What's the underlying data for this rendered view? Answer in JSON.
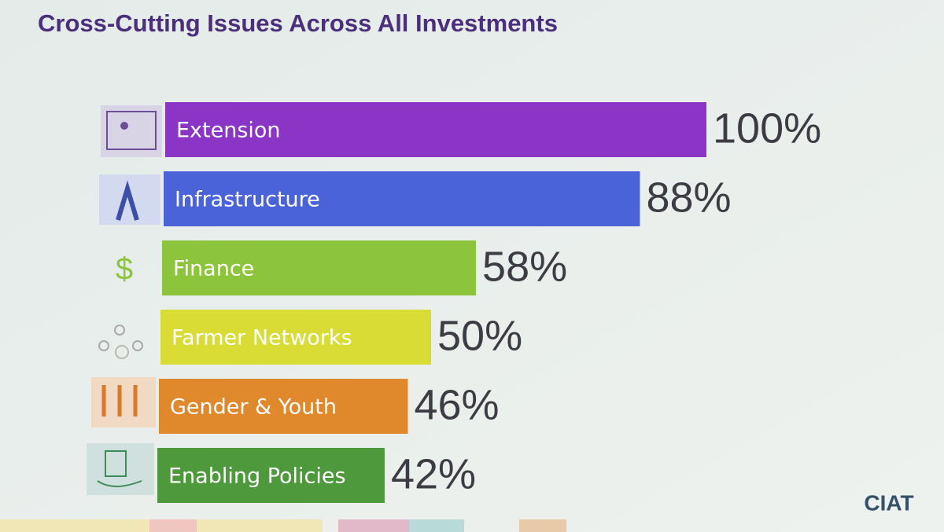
{
  "chart_data": {
    "type": "bar",
    "title": "Cross-Cutting Issues Across All Investments",
    "categories": [
      "Extension",
      "Infrastructure",
      "Finance",
      "Farmer Networks",
      "Gender & Youth",
      "Enabling Policies"
    ],
    "values": [
      100,
      88,
      58,
      50,
      46,
      42
    ],
    "value_labels": [
      "100%",
      "88%",
      "58%",
      "50%",
      "46%",
      "42%"
    ],
    "colors": [
      "#8a35c6",
      "#4a63d9",
      "#8cc43c",
      "#d9dc34",
      "#e0892c",
      "#4f993d"
    ],
    "xlim": [
      0,
      100
    ]
  },
  "logo": "CIAT"
}
